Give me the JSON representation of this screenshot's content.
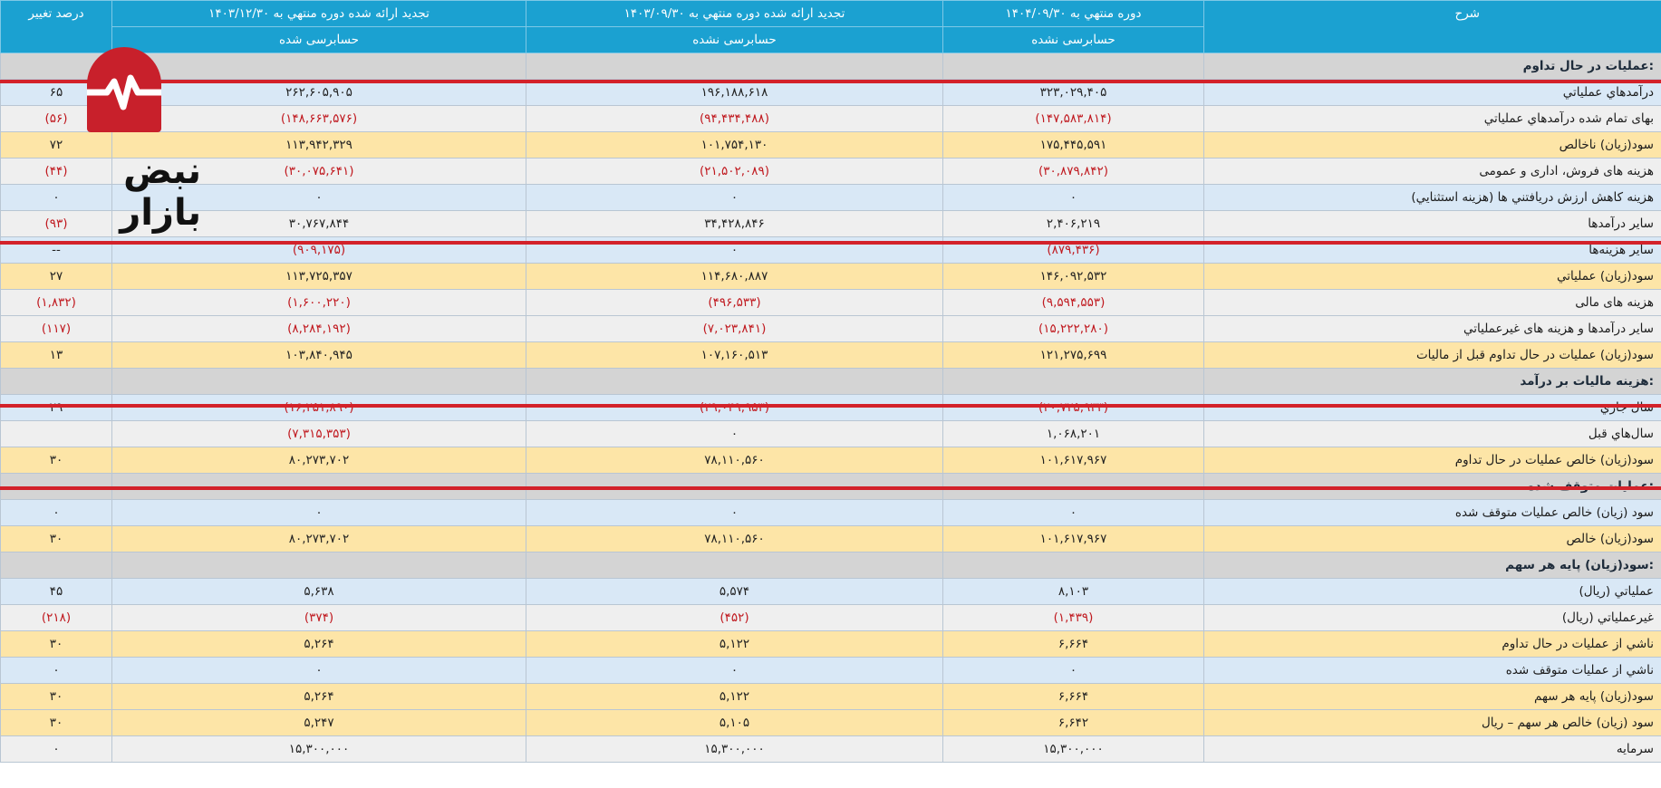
{
  "header": {
    "row1": [
      "شرح",
      "دوره منتهي به ۱۴۰۴/۰۹/۳۰",
      "تجديد ارائه شده دوره منتهي به ۱۴۰۳/۰۹/۳۰",
      "تجديد ارائه شده دوره منتهي به ۱۴۰۳/۱۲/۳۰",
      "درصد تغيير"
    ],
    "row2": [
      "حسابرسی نشده",
      "حسابرسی نشده",
      "حسابرسی شده"
    ]
  },
  "rows": [
    {
      "style": "section",
      "desc": "عمليات در حال تداوم:",
      "c1": "",
      "c2": "",
      "c3": "",
      "pct": ""
    },
    {
      "style": "blue",
      "desc": "درآمدهاي عملياتي",
      "c1": "۳۲۳,۰۲۹,۴۰۵",
      "c2": "۱۹۶,۱۸۸,۶۱۸",
      "c3": "۲۶۲,۶۰۵,۹۰۵",
      "pct": "۶۵"
    },
    {
      "style": "gray",
      "desc": "بهاى تمام شده درآمدهاي عملياتي",
      "c1": "(۱۴۷,۵۸۳,۸۱۴)",
      "c2": "(۹۴,۴۳۴,۴۸۸)",
      "c3": "(۱۴۸,۶۶۳,۵۷۶)",
      "pct": "(۵۶)"
    },
    {
      "style": "yellow",
      "desc": "سود(زيان) ناخالص",
      "c1": "۱۷۵,۴۴۵,۵۹۱",
      "c2": "۱۰۱,۷۵۴,۱۳۰",
      "c3": "۱۱۳,۹۴۲,۳۲۹",
      "pct": "۷۲"
    },
    {
      "style": "gray",
      "desc": "هزينه هاى فروش، ادارى و عمومى",
      "c1": "(۳۰,۸۷۹,۸۴۲)",
      "c2": "(۲۱,۵۰۲,۰۸۹)",
      "c3": "(۳۰,۰۷۵,۶۴۱)",
      "pct": "(۴۴)"
    },
    {
      "style": "blue",
      "desc": "هزينه کاهش ارزش دريافتني ها (هزينه استثنايي)",
      "c1": "۰",
      "c2": "۰",
      "c3": "۰",
      "pct": "۰"
    },
    {
      "style": "gray",
      "desc": "ساير درآمدها",
      "c1": "۲,۴۰۶,۲۱۹",
      "c2": "۳۴,۴۲۸,۸۴۶",
      "c3": "۳۰,۷۶۷,۸۴۴",
      "pct": "(۹۳)"
    },
    {
      "style": "blue",
      "desc": "ساير هزينه‌ها",
      "c1": "(۸۷۹,۴۳۶)",
      "c2": "۰",
      "c3": "(۹۰۹,۱۷۵)",
      "pct": "--"
    },
    {
      "style": "yellow",
      "desc": "سود(زيان) عملياتي",
      "c1": "۱۴۶,۰۹۲,۵۳۲",
      "c2": "۱۱۴,۶۸۰,۸۸۷",
      "c3": "۱۱۳,۷۲۵,۳۵۷",
      "pct": "۲۷"
    },
    {
      "style": "gray",
      "desc": "هزينه هاى مالى",
      "c1": "(۹,۵۹۴,۵۵۳)",
      "c2": "(۴۹۶,۵۳۳)",
      "c3": "(۱,۶۰۰,۲۲۰)",
      "pct": "(۱,۸۳۲)"
    },
    {
      "style": "gray",
      "desc": "ساير درآمدها و هزينه هاى غيرعملياتي",
      "c1": "(۱۵,۲۲۲,۲۸۰)",
      "c2": "(۷,۰۲۳,۸۴۱)",
      "c3": "(۸,۲۸۴,۱۹۲)",
      "pct": "(۱۱۷)"
    },
    {
      "style": "yellow",
      "desc": "سود(زيان) عمليات در حال تداوم قبل از ماليات",
      "c1": "۱۲۱,۲۷۵,۶۹۹",
      "c2": "۱۰۷,۱۶۰,۵۱۳",
      "c3": "۱۰۳,۸۴۰,۹۴۵",
      "pct": "۱۳"
    },
    {
      "style": "section",
      "desc": "هزينه ماليات بر درآمد:",
      "c1": "",
      "c2": "",
      "c3": "",
      "pct": ""
    },
    {
      "style": "blue",
      "desc": "سال جاري",
      "c1": "(۲۰,۷۲۵,۹۳۳)",
      "c2": "(۲۹,۰۴۹,۹۵۳)",
      "c3": "(۱۶,۲۵۱,۸۹۰)",
      "pct": "۲۹"
    },
    {
      "style": "gray",
      "desc": "سال‌هاي قبل",
      "c1": "۱,۰۶۸,۲۰۱",
      "c2": "۰",
      "c3": "(۷,۳۱۵,۳۵۳)",
      "pct": ""
    },
    {
      "style": "yellow",
      "desc": "سود(زيان) خالص عمليات در حال تداوم",
      "c1": "۱۰۱,۶۱۷,۹۶۷",
      "c2": "۷۸,۱۱۰,۵۶۰",
      "c3": "۸۰,۲۷۳,۷۰۲",
      "pct": "۳۰"
    },
    {
      "style": "section",
      "desc": "عمليات متوقف شده:",
      "c1": "",
      "c2": "",
      "c3": "",
      "pct": ""
    },
    {
      "style": "blue",
      "desc": "سود (زيان) خالص عمليات متوقف شده",
      "c1": "۰",
      "c2": "۰",
      "c3": "۰",
      "pct": "۰"
    },
    {
      "style": "yellow",
      "desc": "سود(زيان) خالص",
      "c1": "۱۰۱,۶۱۷,۹۶۷",
      "c2": "۷۸,۱۱۰,۵۶۰",
      "c3": "۸۰,۲۷۳,۷۰۲",
      "pct": "۳۰"
    },
    {
      "style": "section",
      "desc": "سود(زيان) پايه هر سهم:",
      "c1": "",
      "c2": "",
      "c3": "",
      "pct": ""
    },
    {
      "style": "blue",
      "desc": "عملياتي (ريال)",
      "c1": "۸,۱۰۳",
      "c2": "۵,۵۷۴",
      "c3": "۵,۶۳۸",
      "pct": "۴۵"
    },
    {
      "style": "gray",
      "desc": "غيرعملياتي (ريال)",
      "c1": "(۱,۴۳۹)",
      "c2": "(۴۵۲)",
      "c3": "(۳۷۴)",
      "pct": "(۲۱۸)"
    },
    {
      "style": "yellow",
      "desc": "ناشي از عمليات در حال تداوم",
      "c1": "۶,۶۶۴",
      "c2": "۵,۱۲۲",
      "c3": "۵,۲۶۴",
      "pct": "۳۰"
    },
    {
      "style": "blue",
      "desc": "ناشي از عمليات متوقف شده",
      "c1": "۰",
      "c2": "۰",
      "c3": "۰",
      "pct": "۰"
    },
    {
      "style": "yellow",
      "desc": "سود(زيان) پايه هر سهم",
      "c1": "۶,۶۶۴",
      "c2": "۵,۱۲۲",
      "c3": "۵,۲۶۴",
      "pct": "۳۰"
    },
    {
      "style": "yellow",
      "desc": "سود (زيان) خالص هر سهم – ريال",
      "c1": "۶,۶۴۲",
      "c2": "۵,۱۰۵",
      "c3": "۵,۲۴۷",
      "pct": "۳۰"
    },
    {
      "style": "gray",
      "desc": "سرمايه",
      "c1": "۱۵,۳۰۰,۰۰۰",
      "c2": "۱۵,۳۰۰,۰۰۰",
      "c3": "۱۵,۳۰۰,۰۰۰",
      "pct": "۰"
    }
  ],
  "logo": {
    "brand_text": "نبض بازار",
    "color": "#c8202b"
  },
  "colors": {
    "header": "#1ba1d1",
    "negative": "#c0191f",
    "accent_line": "#d3222a"
  }
}
